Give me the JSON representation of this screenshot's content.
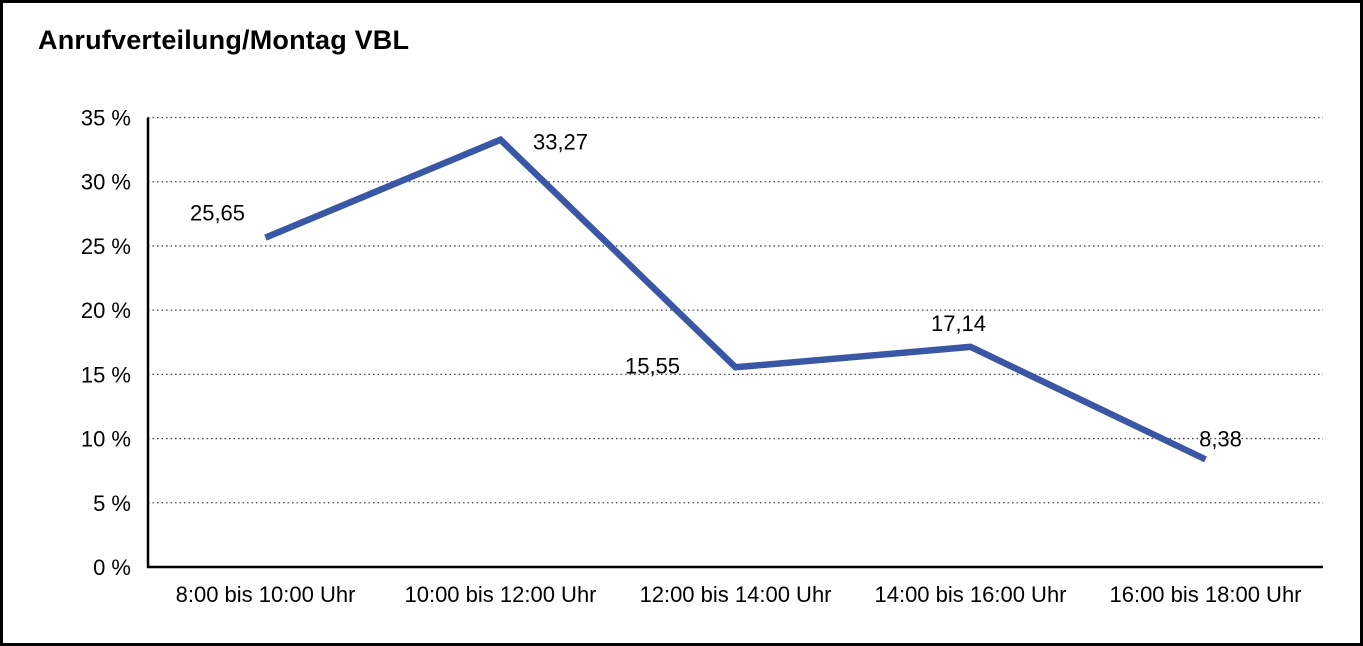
{
  "chart_data": {
    "type": "line",
    "title": "Anrufverteilung/Montag VBL",
    "categories": [
      "8:00 bis 10:00 Uhr",
      "10:00 bis 12:00 Uhr",
      "12:00 bis 14:00 Uhr",
      "14:00 bis 16:00 Uhr",
      "16:00 bis 18:00 Uhr"
    ],
    "values": [
      25.65,
      33.27,
      15.55,
      17.14,
      8.38
    ],
    "data_labels": [
      "25,65",
      "33,27",
      "15,55",
      "17,14",
      "8,38"
    ],
    "y_ticks": [
      "0 %",
      "5 %",
      "10 %",
      "15 %",
      "20 %",
      "25 %",
      "30 %",
      "35 %"
    ],
    "ylim": [
      0,
      35
    ],
    "y_step": 5,
    "xlabel": "",
    "ylabel": "",
    "legend": "none",
    "grid": "horizontal-dotted",
    "line_color": "#3A57A5",
    "text_color": "#000000"
  }
}
